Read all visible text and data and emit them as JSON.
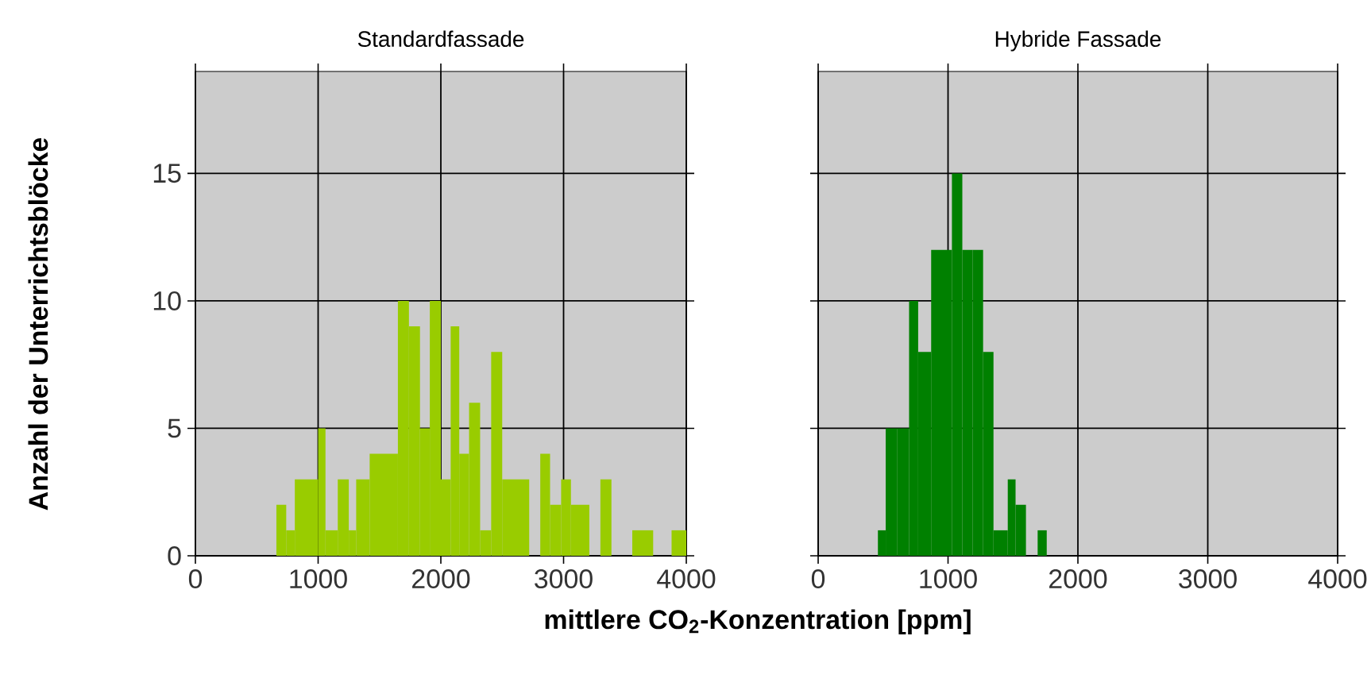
{
  "chart_data": [
    {
      "type": "histogram",
      "title": "Standardfassade",
      "xlabel": "mittlere CO$_{2}$-Konzentration [ppm]",
      "ylabel": "Anzahl der Unterrichtsblöcke",
      "bins": [
        660,
        740,
        810,
        1000,
        1060,
        1160,
        1250,
        1310,
        1420,
        1650,
        1740,
        1830,
        1910,
        2000,
        2080,
        2150,
        2230,
        2320,
        2410,
        2500,
        2720,
        2810,
        2890,
        2980,
        3060,
        3210,
        3300,
        3390,
        3560,
        3730,
        3880,
        4000
      ],
      "values": [
        2,
        1,
        3,
        5,
        1,
        3,
        1,
        3,
        4,
        10,
        9,
        5,
        10,
        3,
        9,
        4,
        6,
        1,
        8,
        3,
        0,
        4,
        2,
        3,
        2,
        0,
        3,
        0,
        1,
        0,
        1
      ],
      "color": "#99cc00",
      "xlim": [
        0,
        4000
      ],
      "ylim": [
        0,
        19
      ],
      "xticks": [
        0,
        1000,
        2000,
        3000,
        4000
      ],
      "yticks": [
        0,
        5,
        10,
        15
      ],
      "grid": true
    },
    {
      "type": "histogram",
      "title": "Hybride Fassade",
      "bins": [
        460,
        520,
        610,
        700,
        770,
        870,
        1030,
        1110,
        1190,
        1270,
        1350,
        1460,
        1520,
        1600,
        1690,
        1760
      ],
      "values": [
        1,
        5,
        5,
        10,
        8,
        12,
        15,
        12,
        12,
        8,
        1,
        3,
        2,
        0,
        1
      ],
      "color": "#008000",
      "xlim": [
        0,
        4000
      ],
      "ylim": [
        0,
        19
      ],
      "xticks": [
        0,
        1000,
        2000,
        3000,
        4000
      ],
      "yticks": [
        0,
        5,
        10,
        15
      ],
      "grid": true,
      "tick_labels": "x"
    }
  ]
}
